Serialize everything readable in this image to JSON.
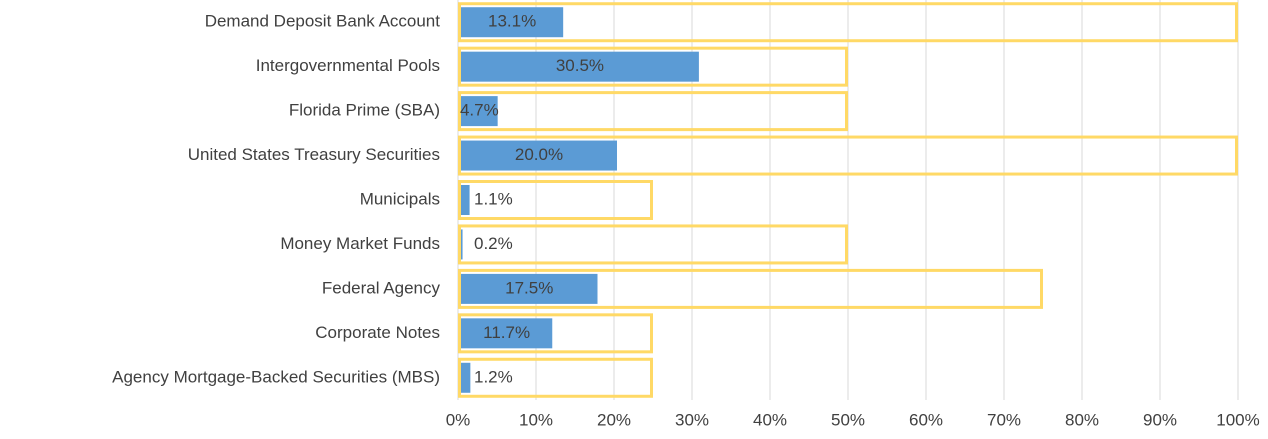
{
  "chart_data": {
    "type": "bar",
    "orientation": "horizontal",
    "categories": [
      "Demand Deposit Bank Account",
      "Intergovernmental Pools",
      "Florida Prime (SBA)",
      "United States Treasury Securities",
      "Municipals",
      "Money Market Funds",
      "Federal Agency",
      "Corporate Notes",
      "Agency Mortgage-Backed Securities (MBS)"
    ],
    "series": [
      {
        "color": "#5b9bd5",
        "values": [
          13.1,
          30.5,
          4.7,
          20.0,
          1.1,
          0.2,
          17.5,
          11.7,
          1.2
        ],
        "value_labels": [
          "13.1%",
          "30.5%",
          "4.7%",
          "20.0%",
          "1.1%",
          "0.2%",
          "17.5%",
          "11.7%",
          "1.2%"
        ]
      },
      {
        "color": "#ffd966",
        "outline": true,
        "values": [
          100,
          50,
          50,
          100,
          25,
          50,
          75,
          25,
          25
        ]
      }
    ],
    "xlim": [
      0,
      100
    ],
    "xticks": [
      {
        "value": 0,
        "label": "0%"
      },
      {
        "value": 10,
        "label": "10%"
      },
      {
        "value": 20,
        "label": "20%"
      },
      {
        "value": 30,
        "label": "30%"
      },
      {
        "value": 40,
        "label": "40%"
      },
      {
        "value": 50,
        "label": "50%"
      },
      {
        "value": 60,
        "label": "60%"
      },
      {
        "value": 70,
        "label": "70%"
      },
      {
        "value": 80,
        "label": "80%"
      },
      {
        "value": 90,
        "label": "90%"
      },
      {
        "value": 100,
        "label": "100%"
      }
    ],
    "grid": true
  }
}
